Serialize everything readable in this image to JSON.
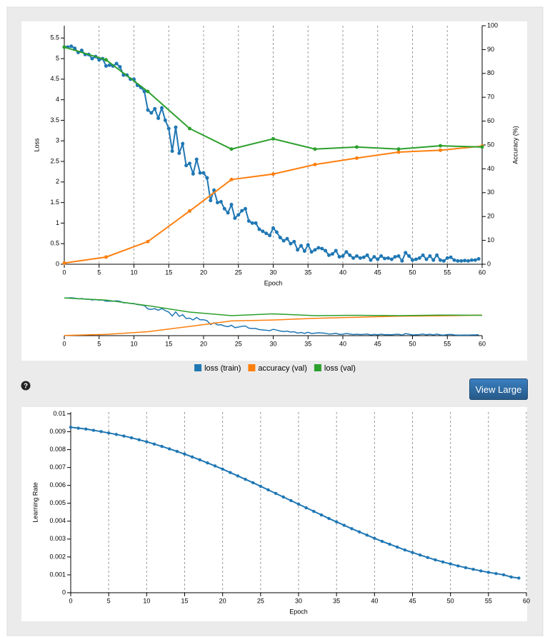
{
  "chart_data": [
    {
      "type": "line",
      "y_label": "Loss",
      "y2_label": "Accuracy (%)",
      "x_label": "Epoch",
      "xlim": [
        0,
        60
      ],
      "xticks": [
        0,
        5,
        10,
        15,
        20,
        25,
        30,
        35,
        40,
        45,
        50,
        55,
        60
      ],
      "ylim": [
        0,
        5.8
      ],
      "yticks": [
        0,
        0.5,
        1,
        1.5,
        2,
        2.5,
        3,
        3.5,
        4,
        4.5,
        5,
        5.5
      ],
      "y2lim": [
        0,
        100
      ],
      "y2ticks": [
        0,
        10,
        20,
        30,
        40,
        50,
        60,
        70,
        80,
        90,
        100
      ],
      "grid": true,
      "series": [
        {
          "name": "loss (train)",
          "color": "#1f77b4",
          "x": [
            0,
            0.5,
            1,
            1.5,
            2,
            2.5,
            3,
            3.5,
            4,
            4.5,
            5,
            5.5,
            6,
            6.5,
            7,
            7.5,
            8,
            8.5,
            9,
            9.5,
            10,
            10.5,
            11,
            11.5,
            12,
            12.5,
            13,
            13.5,
            14,
            14.5,
            15,
            15.5,
            16,
            16.5,
            17,
            17.5,
            18,
            18.5,
            19,
            19.5,
            20,
            20.5,
            21,
            21.5,
            22,
            22.5,
            23,
            23.5,
            24,
            24.5,
            25,
            25.5,
            26,
            26.5,
            27,
            27.5,
            28,
            28.5,
            29,
            29.5,
            30,
            30.5,
            31,
            31.5,
            32,
            32.5,
            33,
            33.5,
            34,
            34.5,
            35,
            35.5,
            36,
            36.5,
            37,
            37.5,
            38,
            38.5,
            39,
            39.5,
            40,
            40.5,
            41,
            41.5,
            42,
            42.5,
            43,
            43.5,
            44,
            44.5,
            45,
            45.5,
            46,
            46.5,
            47,
            47.5,
            48,
            48.5,
            49,
            49.5,
            50,
            50.5,
            51,
            51.5,
            52,
            52.5,
            53,
            53.5,
            54,
            54.5,
            55,
            55.5,
            56,
            56.5,
            57,
            57.5,
            58,
            58.5,
            59,
            59.5
          ],
          "values": [
            5.28,
            5.28,
            5.3,
            5.25,
            5.15,
            5.2,
            5.1,
            5.1,
            5.0,
            5.05,
            4.97,
            5.0,
            4.82,
            4.84,
            4.82,
            4.88,
            4.8,
            4.6,
            4.6,
            4.5,
            4.5,
            4.35,
            4.3,
            4.2,
            3.75,
            3.68,
            3.78,
            3.55,
            3.8,
            3.5,
            3.3,
            2.75,
            3.33,
            2.7,
            2.93,
            2.4,
            2.45,
            2.2,
            2.55,
            2.22,
            2.22,
            2.1,
            1.55,
            1.8,
            1.5,
            1.52,
            1.35,
            1.25,
            1.45,
            1.12,
            1.2,
            1.3,
            1.35,
            1.05,
            1.0,
            1.0,
            0.85,
            0.8,
            0.75,
            0.7,
            0.88,
            0.78,
            0.65,
            0.57,
            0.62,
            0.5,
            0.55,
            0.35,
            0.45,
            0.32,
            0.47,
            0.3,
            0.35,
            0.4,
            0.38,
            0.33,
            0.22,
            0.25,
            0.33,
            0.18,
            0.2,
            0.3,
            0.22,
            0.15,
            0.2,
            0.15,
            0.17,
            0.22,
            0.1,
            0.18,
            0.12,
            0.2,
            0.14,
            0.15,
            0.12,
            0.18,
            0.2,
            0.08,
            0.28,
            0.2,
            0.1,
            0.12,
            0.15,
            0.22,
            0.12,
            0.2,
            0.1,
            0.22,
            0.1,
            0.08,
            0.15,
            0.17,
            0.1,
            0.08,
            0.08,
            0.09,
            0.08,
            0.1,
            0.1,
            0.13
          ]
        },
        {
          "name": "accuracy (val)",
          "color": "#ff7f0e",
          "axis": "y2",
          "x": [
            0,
            6,
            12,
            18,
            24,
            30,
            36,
            42,
            48,
            54,
            60
          ],
          "values": [
            0.5,
            3,
            9.5,
            22.3,
            35.5,
            37.8,
            41.8,
            44.5,
            47,
            47.8,
            49.5
          ]
        },
        {
          "name": "loss (val)",
          "color": "#2ca02c",
          "x": [
            0,
            6,
            12,
            18,
            24,
            30,
            36,
            42,
            48,
            54,
            60
          ],
          "values": [
            5.28,
            4.97,
            4.2,
            3.3,
            2.8,
            3.05,
            2.8,
            2.85,
            2.8,
            2.88,
            2.85
          ]
        }
      ]
    },
    {
      "type": "line",
      "y_label": "Learning Rate",
      "x_label": "Epoch",
      "xlim": [
        0,
        60
      ],
      "xticks": [
        0,
        5,
        10,
        15,
        20,
        25,
        30,
        35,
        40,
        45,
        50,
        55,
        60
      ],
      "ylim": [
        0,
        0.0101
      ],
      "yticks": [
        0,
        0.001,
        0.002,
        0.003,
        0.004,
        0.005,
        0.006,
        0.007,
        0.008,
        0.009,
        0.01
      ],
      "grid": true,
      "series": [
        {
          "color": "#1f77b4",
          "x": [
            0,
            1,
            2,
            3,
            4,
            5,
            6,
            7,
            8,
            9,
            10,
            11,
            12,
            13,
            14,
            15,
            16,
            17,
            18,
            19,
            20,
            21,
            22,
            23,
            24,
            25,
            26,
            27,
            28,
            29,
            30,
            31,
            32,
            33,
            34,
            35,
            36,
            37,
            38,
            39,
            40,
            41,
            42,
            43,
            44,
            45,
            46,
            47,
            48,
            49,
            50,
            51,
            52,
            53,
            54,
            55,
            56,
            57,
            58,
            59
          ],
          "values": [
            0.00925,
            0.0092,
            0.00915,
            0.00908,
            0.00901,
            0.00893,
            0.00885,
            0.00876,
            0.00866,
            0.00855,
            0.00844,
            0.00831,
            0.00818,
            0.00804,
            0.0079,
            0.00775,
            0.00759,
            0.00743,
            0.00726,
            0.00709,
            0.00691,
            0.00672,
            0.00653,
            0.00634,
            0.00615,
            0.00595,
            0.00575,
            0.00555,
            0.00535,
            0.00515,
            0.00495,
            0.00475,
            0.00455,
            0.00435,
            0.00415,
            0.00396,
            0.00377,
            0.00358,
            0.0034,
            0.00322,
            0.00304,
            0.00287,
            0.00271,
            0.00255,
            0.00239,
            0.00225,
            0.00211,
            0.00197,
            0.00184,
            0.00172,
            0.00161,
            0.0015,
            0.0014,
            0.00131,
            0.00122,
            0.00114,
            0.00107,
            0.001,
            0.00088,
            0.00082
          ]
        }
      ]
    }
  ],
  "help": "?",
  "button": "View Large"
}
